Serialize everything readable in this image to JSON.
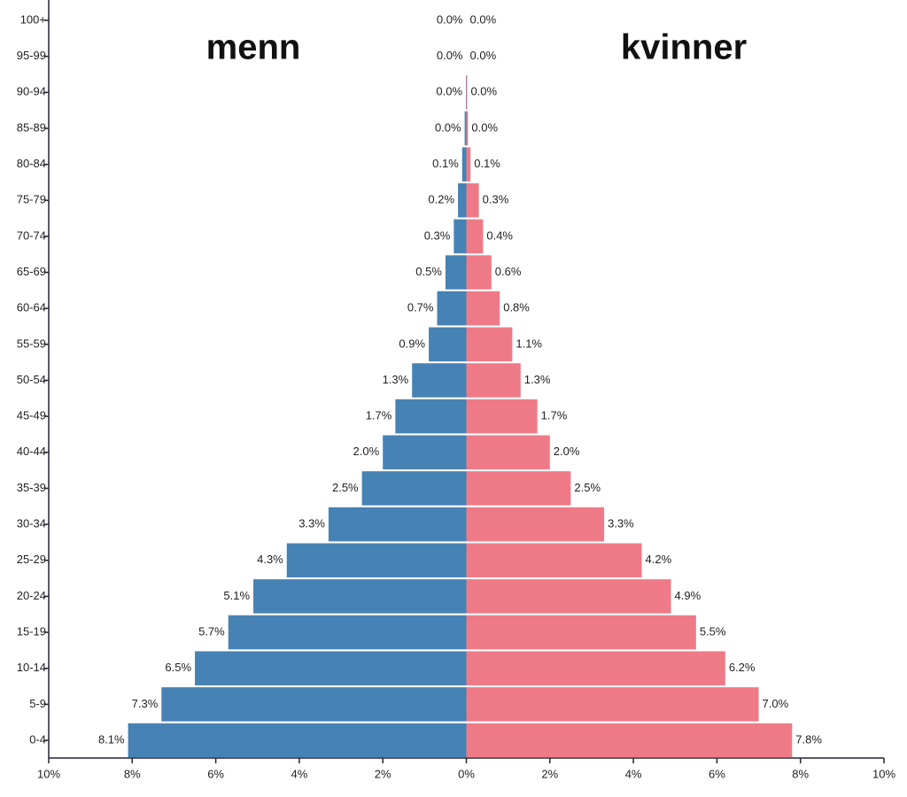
{
  "chart_data": {
    "type": "population-pyramid",
    "categories": [
      "0-4",
      "5-9",
      "10-14",
      "15-19",
      "20-24",
      "25-29",
      "30-34",
      "35-39",
      "40-44",
      "45-49",
      "50-54",
      "55-59",
      "60-64",
      "65-69",
      "70-74",
      "75-79",
      "80-84",
      "85-89",
      "90-94",
      "95-99",
      "100+"
    ],
    "series": [
      {
        "name": "menn",
        "color": "#4682b4",
        "side": "left",
        "values": [
          8.1,
          7.3,
          6.5,
          5.7,
          5.1,
          4.3,
          3.3,
          2.5,
          2.0,
          1.7,
          1.3,
          0.9,
          0.7,
          0.5,
          0.3,
          0.2,
          0.1,
          0.04,
          0.01,
          0,
          0
        ],
        "value_labels": [
          "8.1%",
          "7.3%",
          "6.5%",
          "5.7%",
          "5.1%",
          "4.3%",
          "3.3%",
          "2.5%",
          "2.0%",
          "1.7%",
          "1.3%",
          "0.9%",
          "0.7%",
          "0.5%",
          "0.3%",
          "0.2%",
          "0.1%",
          "0.0%",
          "0.0%",
          "0.0%",
          "0.0%"
        ]
      },
      {
        "name": "kvinner",
        "color": "#ef7a87",
        "side": "right",
        "values": [
          7.8,
          7.0,
          6.2,
          5.5,
          4.9,
          4.2,
          3.3,
          2.5,
          2.0,
          1.7,
          1.3,
          1.1,
          0.8,
          0.6,
          0.4,
          0.3,
          0.1,
          0.04,
          0.02,
          0,
          0
        ],
        "value_labels": [
          "7.8%",
          "7.0%",
          "6.2%",
          "5.5%",
          "4.9%",
          "4.2%",
          "3.3%",
          "2.5%",
          "2.0%",
          "1.7%",
          "1.3%",
          "1.1%",
          "0.8%",
          "0.6%",
          "0.4%",
          "0.3%",
          "0.1%",
          "0.0%",
          "0.0%",
          "0.0%",
          "0.0%"
        ]
      }
    ],
    "xlim": [
      -10,
      10
    ],
    "xticks": [
      {
        "value": -10,
        "label": "10%"
      },
      {
        "value": -8,
        "label": "8%"
      },
      {
        "value": -6,
        "label": "6%"
      },
      {
        "value": -4,
        "label": "4%"
      },
      {
        "value": -2,
        "label": "2%"
      },
      {
        "value": 0,
        "label": "0%"
      },
      {
        "value": 2,
        "label": "2%"
      },
      {
        "value": 4,
        "label": "4%"
      },
      {
        "value": 6,
        "label": "6%"
      },
      {
        "value": 8,
        "label": "8%"
      },
      {
        "value": 10,
        "label": "10%"
      }
    ]
  }
}
